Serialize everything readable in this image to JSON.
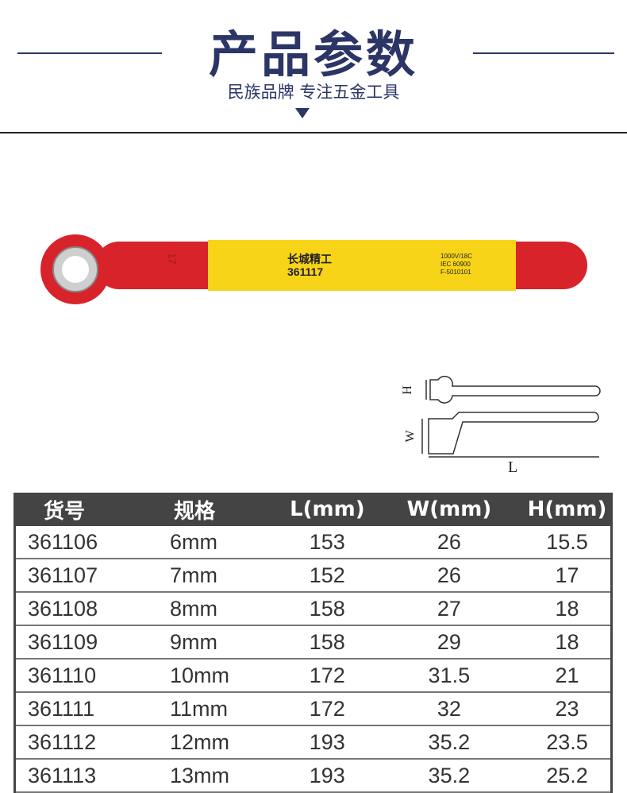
{
  "header": {
    "title": "产品参数",
    "subtitle": "民族品牌 专注五金工具"
  },
  "product": {
    "brand": "长城精工",
    "model": "361117",
    "size_mark": "17",
    "cert_lines": [
      "1000V/18C",
      "IEC 60900",
      "F-5010101"
    ],
    "colors": {
      "red": "#d8232a",
      "yellow": "#f7d417"
    }
  },
  "diagram": {
    "labels": {
      "h": "H",
      "w": "W",
      "l": "L"
    }
  },
  "table": {
    "headers": [
      "货号",
      "规格",
      "L(mm)",
      "W(mm)",
      "H(mm)"
    ],
    "rows": [
      [
        "361106",
        "6mm",
        "153",
        "26",
        "15.5"
      ],
      [
        "361107",
        "7mm",
        "152",
        "26",
        "17"
      ],
      [
        "361108",
        "8mm",
        "158",
        "27",
        "18"
      ],
      [
        "361109",
        "9mm",
        "158",
        "29",
        "18"
      ],
      [
        "361110",
        "10mm",
        "172",
        "31.5",
        "21"
      ],
      [
        "361111",
        "11mm",
        "172",
        "32",
        "23"
      ],
      [
        "361112",
        "12mm",
        "193",
        "35.2",
        "23.5"
      ],
      [
        "361113",
        "13mm",
        "193",
        "35.2",
        "25.2"
      ]
    ]
  }
}
